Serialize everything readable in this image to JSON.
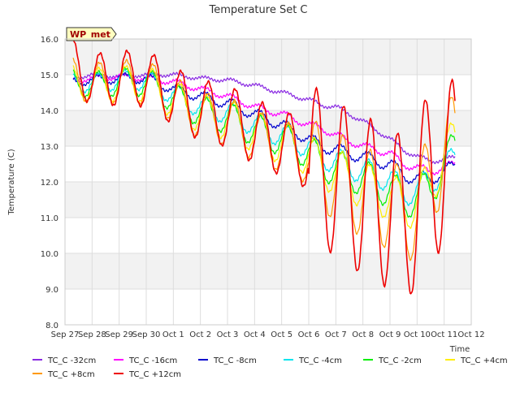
{
  "chart_data": {
    "type": "line",
    "title": "Temperature Set C",
    "xlabel": "Time",
    "ylabel": "Temperature (C)",
    "badge": "WP_met",
    "xlim": [
      0,
      15
    ],
    "ylim": [
      8.0,
      16.0
    ],
    "x_tick_labels": [
      "Sep 27",
      "Sep 28",
      "Sep 29",
      "Sep 30",
      "Oct 1",
      "Oct 2",
      "Oct 3",
      "Oct 4",
      "Oct 5",
      "Oct 6",
      "Oct 7",
      "Oct 8",
      "Oct 9",
      "Oct 10",
      "Oct 11",
      "Oct 12"
    ],
    "y_ticks": [
      8.0,
      9.0,
      10.0,
      11.0,
      12.0,
      13.0,
      14.0,
      15.0,
      16.0
    ],
    "y_tick_labels": [
      "8.0",
      "9.0",
      "10.0",
      "11.0",
      "12.0",
      "13.0",
      "14.0",
      "15.0",
      "16.0"
    ],
    "x_units_note": "days since Sep 27",
    "grid": true,
    "legend_position": "bottom",
    "series": [
      {
        "name": "TC_C -32cm",
        "color": "#8a2be2",
        "x": [
          0.3,
          1,
          2,
          3,
          4,
          5,
          6,
          7,
          8,
          9,
          9.5,
          10,
          11,
          12,
          12.5,
          13,
          13.5,
          14,
          14.4
        ],
        "y": [
          14.9,
          15.0,
          14.95,
          15.0,
          15.0,
          14.9,
          14.85,
          14.7,
          14.5,
          14.3,
          14.15,
          14.1,
          13.7,
          13.2,
          12.9,
          12.7,
          12.6,
          12.6,
          12.7
        ]
      },
      {
        "name": "TC_C -16cm",
        "color": "#ff00ff",
        "x": [
          0.3,
          1,
          2,
          3,
          4,
          5,
          6,
          7,
          8,
          9,
          9.5,
          10,
          11,
          12,
          12.5,
          13,
          13.5,
          14,
          14.4
        ],
        "y": [
          14.85,
          14.9,
          14.95,
          14.9,
          14.8,
          14.6,
          14.4,
          14.1,
          13.9,
          13.6,
          13.5,
          13.3,
          13.0,
          12.8,
          12.5,
          12.4,
          12.3,
          12.4,
          12.5
        ]
      },
      {
        "name": "TC_C -8cm",
        "color": "#0000cd",
        "x": [
          0.3,
          1,
          2,
          3,
          4,
          5,
          6,
          7,
          8,
          9,
          9.5,
          10,
          11,
          12,
          12.5,
          13,
          13.5,
          14,
          14.4
        ],
        "y": [
          14.8,
          14.85,
          14.9,
          14.9,
          14.6,
          14.4,
          14.2,
          13.9,
          13.6,
          13.2,
          13.0,
          12.9,
          12.7,
          12.5,
          12.2,
          12.1,
          12.1,
          12.3,
          12.4
        ]
      },
      {
        "name": "TC_C -4cm",
        "color": "#00e5ee",
        "x": [
          0.3,
          1,
          2,
          3,
          4,
          5,
          6,
          7,
          8,
          9,
          9.5,
          10,
          11,
          12,
          12.5,
          13,
          13.5,
          14,
          14.4
        ],
        "y": [
          14.8,
          14.75,
          14.85,
          14.85,
          14.45,
          14.1,
          13.95,
          13.6,
          13.3,
          13.0,
          12.7,
          12.6,
          12.3,
          12.1,
          11.7,
          11.8,
          12.0,
          12.4,
          12.6
        ]
      },
      {
        "name": "TC_C -2cm",
        "color": "#00ee00",
        "x": [
          0.3,
          1,
          2,
          3,
          4,
          5,
          6,
          7,
          8,
          9,
          9.5,
          10,
          11,
          12,
          12.5,
          13,
          13.5,
          14,
          14.4
        ],
        "y": [
          14.8,
          14.7,
          14.8,
          14.8,
          14.35,
          13.95,
          13.8,
          13.45,
          13.2,
          12.85,
          12.5,
          12.4,
          12.1,
          11.8,
          11.5,
          11.6,
          11.8,
          12.5,
          12.9
        ]
      },
      {
        "name": "TC_C +4cm",
        "color": "#ffee00",
        "x": [
          0.3,
          1,
          2,
          3,
          4,
          5,
          6,
          7,
          8,
          9,
          9.5,
          10,
          11,
          12,
          12.5,
          13,
          13.5,
          14,
          14.4
        ],
        "y": [
          14.8,
          14.7,
          14.75,
          14.75,
          14.3,
          13.9,
          13.75,
          13.4,
          13.1,
          12.8,
          12.4,
          12.3,
          11.9,
          11.6,
          11.3,
          11.5,
          11.9,
          12.8,
          13.0
        ]
      },
      {
        "name": "TC_C +8cm",
        "color": "#ff9900",
        "x": [
          0.3,
          1,
          2,
          3,
          4,
          5,
          6,
          7,
          8,
          9,
          9.5,
          10,
          11,
          12,
          12.5,
          13,
          13.5,
          14,
          14.4
        ],
        "y": [
          14.9,
          14.75,
          14.8,
          14.8,
          14.3,
          13.85,
          13.7,
          13.3,
          13.0,
          12.7,
          12.3,
          12.2,
          11.7,
          11.4,
          11.0,
          11.3,
          12.0,
          13.0,
          13.0
        ]
      },
      {
        "name": "TC_C +12cm",
        "color": "#ee0000",
        "x": [
          0.3,
          1,
          2,
          3,
          4,
          5,
          6,
          7,
          8,
          9,
          9.5,
          10,
          11,
          12,
          12.5,
          13,
          13.5,
          14,
          14.4
        ],
        "y": [
          15.3,
          14.85,
          14.9,
          14.9,
          14.4,
          14.0,
          13.85,
          13.4,
          13.1,
          12.75,
          12.3,
          12.1,
          11.6,
          11.3,
          10.9,
          11.4,
          12.3,
          12.5,
          12.4
        ]
      }
    ]
  }
}
